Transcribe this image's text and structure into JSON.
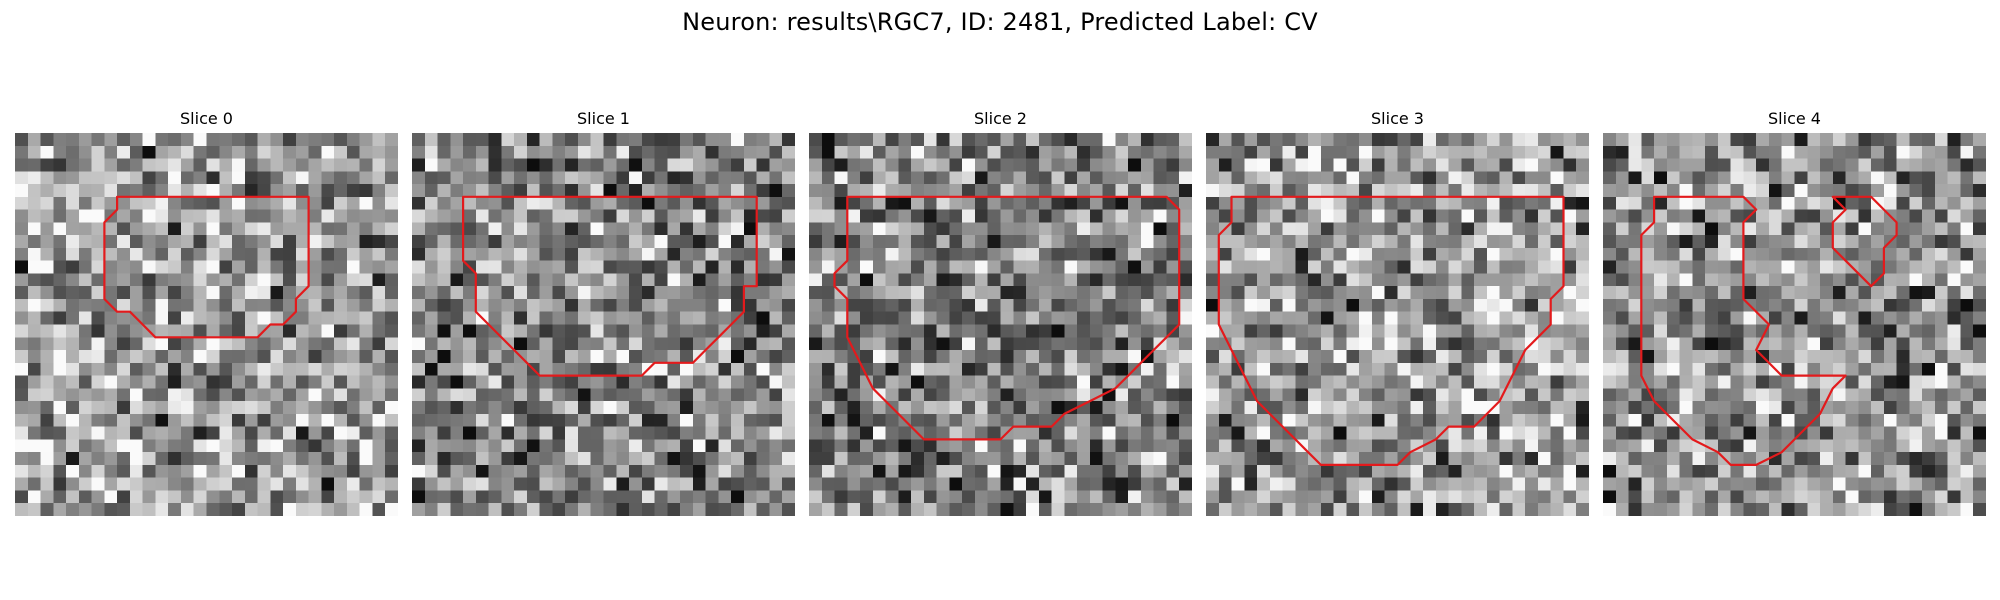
{
  "figure": {
    "title": "Neuron: results\\RGC7, ID: 2481, Predicted Label: CV",
    "grid_size": 30,
    "contour_color": "#e31a1c",
    "colormap": "gray"
  },
  "panels": [
    {
      "title": "Slice 0",
      "seed": 11,
      "brightness": 0.6,
      "contours": [
        [
          [
            8,
            5
          ],
          [
            23,
            5
          ],
          [
            23,
            12
          ],
          [
            22,
            13
          ],
          [
            22,
            14
          ],
          [
            21,
            15
          ],
          [
            20,
            15
          ],
          [
            19,
            16
          ],
          [
            11,
            16
          ],
          [
            10,
            15
          ],
          [
            9,
            14
          ],
          [
            8,
            14
          ],
          [
            7,
            13
          ],
          [
            7,
            7
          ],
          [
            8,
            6
          ]
        ]
      ]
    },
    {
      "title": "Slice 1",
      "seed": 23,
      "brightness": 0.52,
      "contours": [
        [
          [
            4,
            5
          ],
          [
            27,
            5
          ],
          [
            27,
            12
          ],
          [
            26,
            12
          ],
          [
            26,
            14
          ],
          [
            25,
            15
          ],
          [
            24,
            16
          ],
          [
            23,
            17
          ],
          [
            22,
            18
          ],
          [
            19,
            18
          ],
          [
            18,
            19
          ],
          [
            10,
            19
          ],
          [
            9,
            18
          ],
          [
            8,
            17
          ],
          [
            6,
            15
          ],
          [
            5,
            14
          ],
          [
            5,
            11
          ],
          [
            4,
            10
          ]
        ]
      ]
    },
    {
      "title": "Slice 2",
      "seed": 37,
      "brightness": 0.5,
      "contours": [
        [
          [
            3,
            5
          ],
          [
            28,
            5
          ],
          [
            29,
            6
          ],
          [
            29,
            15
          ],
          [
            28,
            16
          ],
          [
            27,
            17
          ],
          [
            26,
            18
          ],
          [
            25,
            19
          ],
          [
            24,
            20
          ],
          [
            22,
            21
          ],
          [
            20,
            22
          ],
          [
            19,
            23
          ],
          [
            16,
            23
          ],
          [
            15,
            24
          ],
          [
            9,
            24
          ],
          [
            8,
            23
          ],
          [
            7,
            22
          ],
          [
            6,
            21
          ],
          [
            5,
            20
          ],
          [
            4,
            18
          ],
          [
            3,
            16
          ],
          [
            3,
            13
          ],
          [
            2,
            12
          ],
          [
            2,
            11
          ],
          [
            3,
            10
          ]
        ]
      ]
    },
    {
      "title": "Slice 3",
      "seed": 53,
      "brightness": 0.62,
      "contours": [
        [
          [
            2,
            5
          ],
          [
            28,
            5
          ],
          [
            28,
            12
          ],
          [
            27,
            13
          ],
          [
            27,
            15
          ],
          [
            26,
            16
          ],
          [
            25,
            17
          ],
          [
            24,
            19
          ],
          [
            23,
            21
          ],
          [
            22,
            22
          ],
          [
            21,
            23
          ],
          [
            19,
            23
          ],
          [
            18,
            24
          ],
          [
            16,
            25
          ],
          [
            15,
            26
          ],
          [
            9,
            26
          ],
          [
            8,
            25
          ],
          [
            7,
            24
          ],
          [
            5,
            22
          ],
          [
            4,
            21
          ],
          [
            3,
            19
          ],
          [
            2,
            17
          ],
          [
            1,
            15
          ],
          [
            1,
            8
          ],
          [
            2,
            7
          ]
        ]
      ]
    },
    {
      "title": "Slice 4",
      "seed": 71,
      "brightness": 0.56,
      "contours": [
        [
          [
            4,
            5
          ],
          [
            11,
            5
          ],
          [
            12,
            6
          ],
          [
            11,
            7
          ],
          [
            11,
            13
          ],
          [
            13,
            15
          ],
          [
            12,
            17
          ],
          [
            14,
            19
          ],
          [
            19,
            19
          ],
          [
            18,
            20
          ],
          [
            17,
            22
          ],
          [
            15,
            24
          ],
          [
            14,
            25
          ],
          [
            12,
            26
          ],
          [
            10,
            26
          ],
          [
            9,
            25
          ],
          [
            7,
            24
          ],
          [
            5,
            22
          ],
          [
            4,
            21
          ],
          [
            3,
            19
          ],
          [
            3,
            8
          ],
          [
            4,
            7
          ]
        ],
        [
          [
            18,
            5
          ],
          [
            21,
            5
          ],
          [
            22,
            6
          ],
          [
            23,
            7
          ],
          [
            23,
            8
          ],
          [
            22,
            9
          ],
          [
            22,
            11
          ],
          [
            21,
            12
          ],
          [
            19,
            10
          ],
          [
            18,
            9
          ],
          [
            18,
            7
          ],
          [
            19,
            6
          ]
        ]
      ]
    }
  ]
}
